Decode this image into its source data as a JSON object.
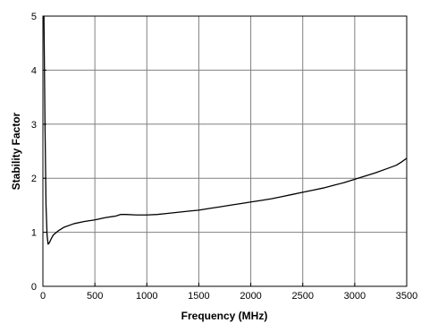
{
  "chart_data": {
    "type": "line",
    "xlabel": "Frequency (MHz)",
    "ylabel": "Stability Factor",
    "xlim": [
      0,
      3500
    ],
    "ylim": [
      0,
      5
    ],
    "x_ticks": [
      0,
      500,
      1000,
      1500,
      2000,
      2500,
      3000,
      3500
    ],
    "y_ticks": [
      0,
      1,
      2,
      3,
      4,
      5
    ],
    "grid": true,
    "series": [
      {
        "x": [
          10,
          20,
          30,
          40,
          50,
          60,
          80,
          100,
          150,
          200,
          300,
          400,
          500,
          600,
          700,
          750,
          800,
          900,
          1000,
          1100,
          1200,
          1300,
          1400,
          1500,
          1600,
          1700,
          1800,
          1900,
          2000,
          2100,
          2200,
          2300,
          2400,
          2500,
          2600,
          2700,
          2800,
          2900,
          3000,
          3100,
          3200,
          3300,
          3400,
          3450,
          3500
        ],
        "y": [
          5.0,
          3.0,
          1.5,
          0.95,
          0.78,
          0.8,
          0.88,
          0.95,
          1.03,
          1.09,
          1.16,
          1.2,
          1.23,
          1.27,
          1.3,
          1.33,
          1.33,
          1.32,
          1.32,
          1.33,
          1.35,
          1.37,
          1.39,
          1.41,
          1.44,
          1.47,
          1.5,
          1.53,
          1.56,
          1.59,
          1.62,
          1.66,
          1.7,
          1.74,
          1.78,
          1.82,
          1.87,
          1.92,
          1.98,
          2.04,
          2.1,
          2.17,
          2.24,
          2.3,
          2.37
        ]
      }
    ]
  }
}
